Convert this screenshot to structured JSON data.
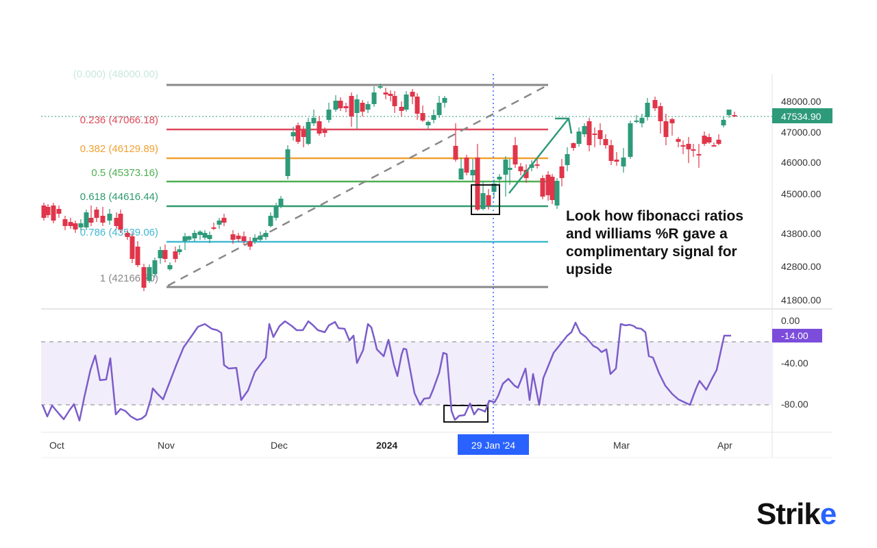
{
  "chart_data": {
    "type": "candlestick",
    "title": "",
    "annotation": "Look how fibonacci ratios and williams %R gave a complimentary signal for upside",
    "price_axis": {
      "ticks": [
        "48000.00",
        "47000.00",
        "46000.00",
        "45000.00",
        "43800.00",
        "42800.00",
        "41800.00"
      ],
      "current_price": "47534.90",
      "current_price_color": "#2e9a7a"
    },
    "fibonacci": {
      "levels": [
        {
          "ratio": "0",
          "price": "",
          "label": "",
          "color": "#888888"
        },
        {
          "ratio": "0.236",
          "price": "47066.18",
          "label": "0.236 (47066.18)",
          "color": "#e0485a"
        },
        {
          "ratio": "0.382",
          "price": "46129.89",
          "label": "0.382 (46129.89)",
          "color": "#f0a030"
        },
        {
          "ratio": "0.5",
          "price": "45373.16",
          "label": "0.5 (45373.16)",
          "color": "#4caf50"
        },
        {
          "ratio": "0.618",
          "price": "44616.44",
          "label": "0.618 (44616.44)",
          "color": "#2e9a6e"
        },
        {
          "ratio": "0.786",
          "price": "43539.06",
          "label": "0.786 (43539.06)",
          "color": "#40b8d0"
        },
        {
          "ratio": "1",
          "price": "42166.70",
          "label": "1 (42166.70)",
          "color": "#888888"
        }
      ]
    },
    "williams_r": {
      "axis_ticks": [
        "0.00",
        "-40.00",
        "-80.00"
      ],
      "current_value": "-14.00",
      "current_value_color": "#7c4ddb",
      "overbought": -20,
      "oversold": -80,
      "line_color": "#7b5cc9"
    },
    "time_axis": {
      "labels": [
        "Oct",
        "Nov",
        "Dec",
        "2024",
        "Mar",
        "Apr"
      ],
      "crosshair_label": "29 Jan '24",
      "crosshair_color": "#2962ff"
    },
    "candle_colors": {
      "up": "#2e9a7a",
      "down": "#e0354a"
    }
  },
  "brand": {
    "logo_main": "Stri",
    "logo_k": "k",
    "logo_e": "e"
  }
}
